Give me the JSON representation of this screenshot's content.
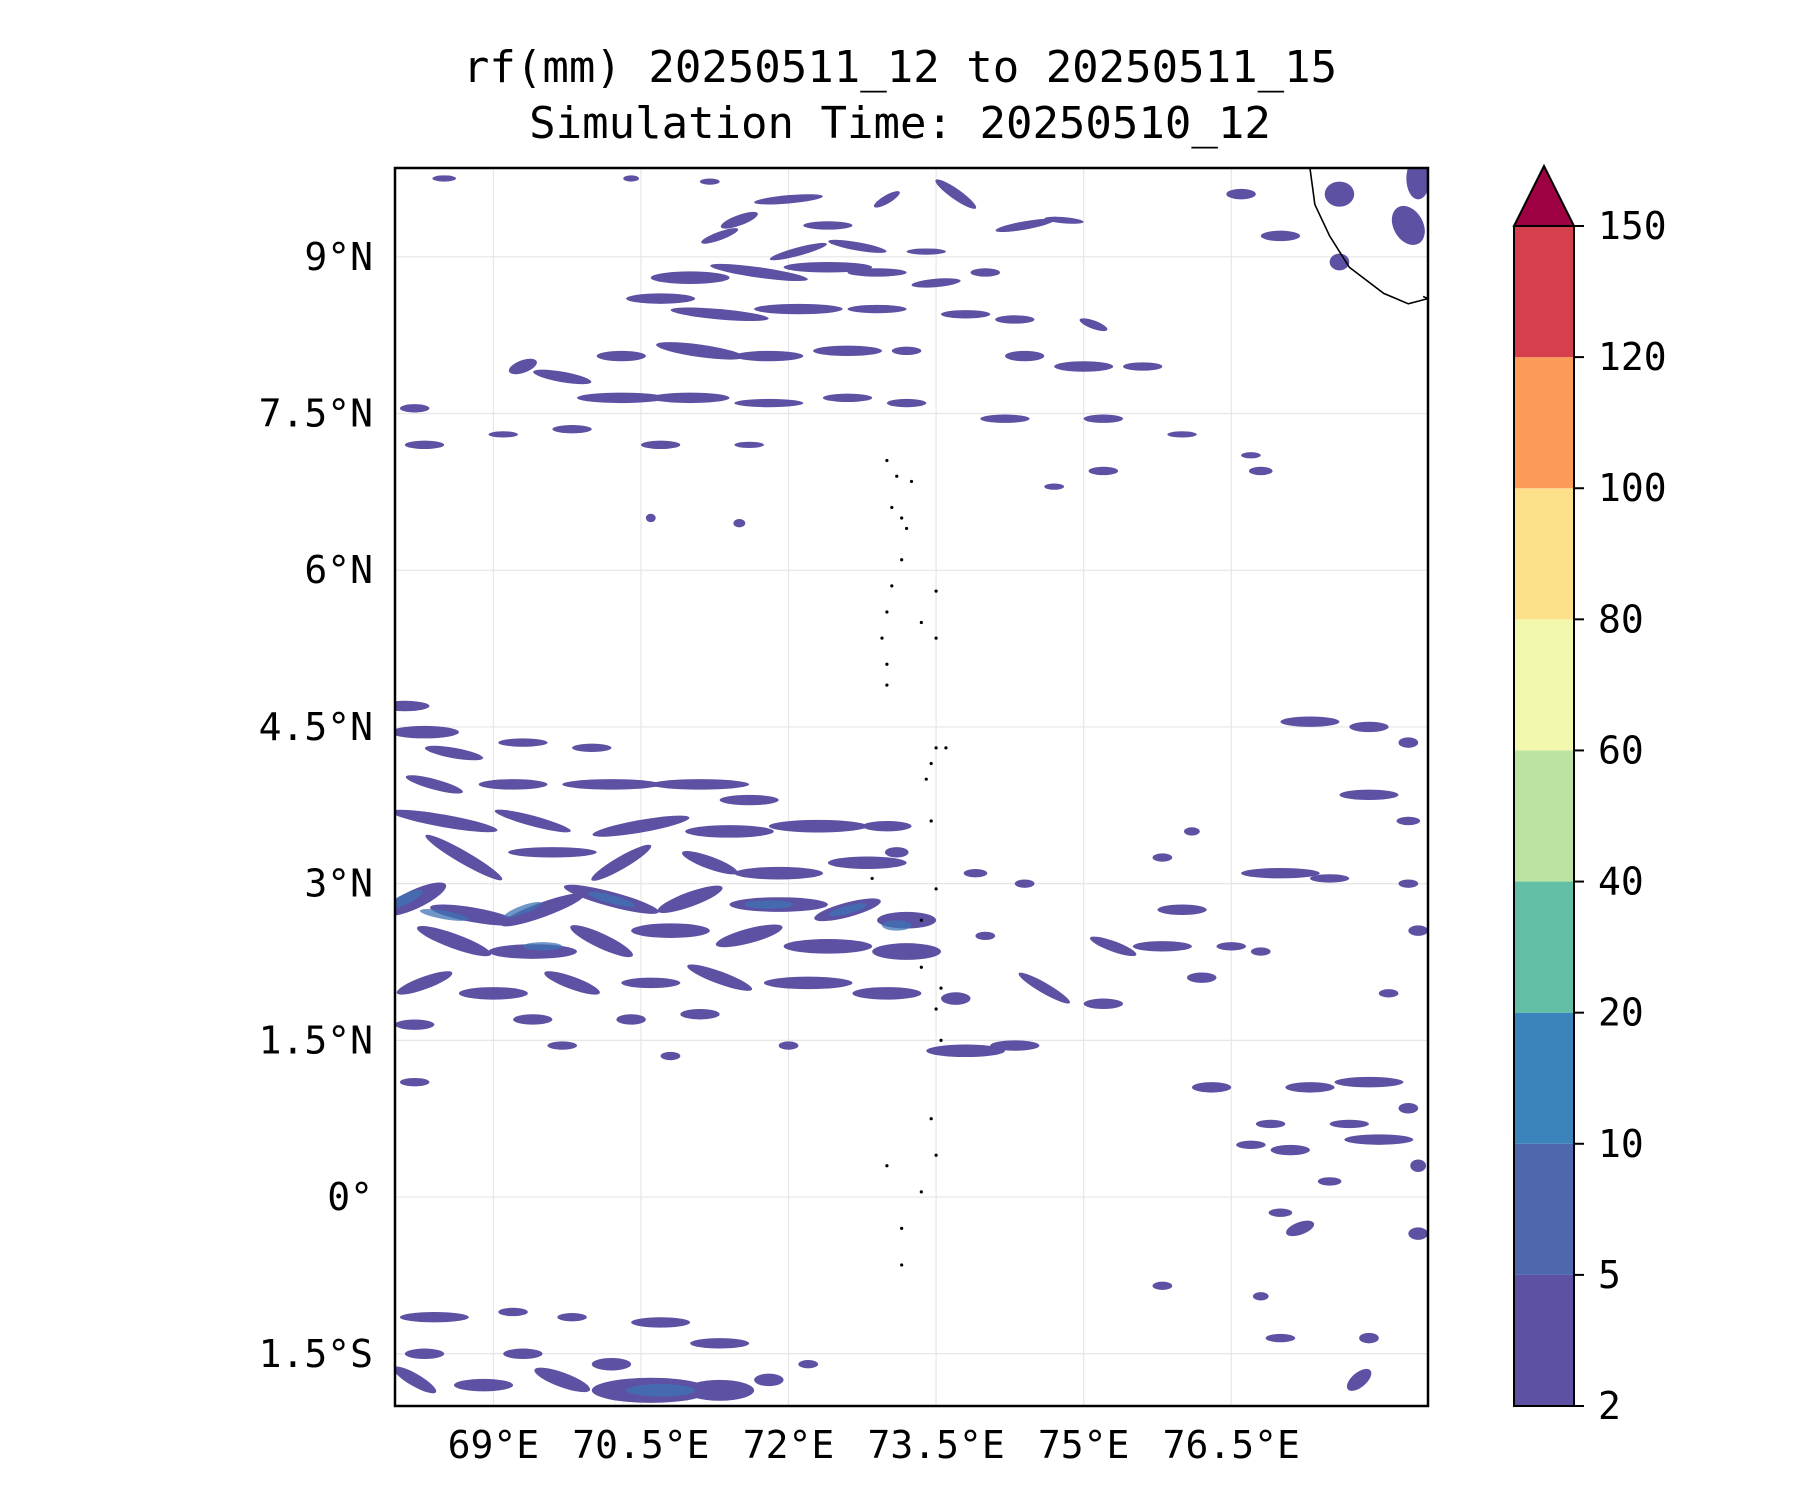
{
  "map": {
    "title_line1": "rf(mm) 20250511_12 to 20250511_15",
    "title_line2": "Simulation Time: 20250510_12",
    "lon_range": [
      68.0,
      78.5
    ],
    "lat_range": [
      -2.0,
      9.85
    ],
    "lon_ticks": [
      69,
      70.5,
      72,
      73.5,
      75,
      76.5
    ],
    "lon_tick_labels": [
      "69°E",
      "70.5°E",
      "72°E",
      "73.5°E",
      "75°E",
      "76.5°E"
    ],
    "lat_ticks": [
      9,
      7.5,
      6,
      4.5,
      3,
      1.5,
      0,
      -1.5
    ],
    "lat_tick_labels": [
      "9°N",
      "7.5°N",
      "6°N",
      "4.5°N",
      "3°N",
      "1.5°N",
      "0°",
      "1.5°S"
    ],
    "gridlines": true,
    "coastline": "black"
  },
  "colorbar": {
    "levels": [
      2,
      5,
      10,
      20,
      40,
      60,
      80,
      100,
      120,
      150
    ],
    "labels": [
      "2",
      "5",
      "10",
      "20",
      "40",
      "60",
      "80",
      "100",
      "120",
      "150"
    ],
    "colors": [
      "#5c51a3",
      "#4e67ad",
      "#3b84bb",
      "#63bea6",
      "#bde3a2",
      "#f2f9ae",
      "#fce08a",
      "#fa9b58",
      "#d6404e"
    ],
    "extend_color": "#9e0142",
    "extend": "max"
  },
  "rain": {
    "fill_color": "#5c51a3",
    "heavy_color": "#3f73b3",
    "blobs": [
      [
        68.5,
        9.75,
        0.12,
        0.03,
        0
      ],
      [
        70.4,
        9.75,
        0.08,
        0.03,
        0
      ],
      [
        71.2,
        9.72,
        0.1,
        0.03,
        0
      ],
      [
        72.0,
        9.55,
        0.35,
        0.04,
        5
      ],
      [
        73.0,
        9.55,
        0.15,
        0.04,
        30
      ],
      [
        73.7,
        9.6,
        0.25,
        0.05,
        -35
      ],
      [
        74.4,
        9.3,
        0.3,
        0.04,
        10
      ],
      [
        74.8,
        9.35,
        0.2,
        0.03,
        -5
      ],
      [
        71.3,
        9.2,
        0.2,
        0.04,
        20
      ],
      [
        71.0,
        8.8,
        0.4,
        0.06,
        0
      ],
      [
        71.7,
        8.85,
        0.5,
        0.05,
        -8
      ],
      [
        72.4,
        8.9,
        0.45,
        0.05,
        0
      ],
      [
        72.1,
        9.05,
        0.3,
        0.04,
        15
      ],
      [
        72.9,
        8.85,
        0.3,
        0.04,
        0
      ],
      [
        73.5,
        8.75,
        0.25,
        0.04,
        5
      ],
      [
        74.0,
        8.85,
        0.15,
        0.04,
        0
      ],
      [
        72.7,
        9.1,
        0.3,
        0.04,
        -10
      ],
      [
        71.5,
        9.35,
        0.2,
        0.05,
        20
      ],
      [
        72.4,
        9.3,
        0.25,
        0.04,
        0
      ],
      [
        73.4,
        9.05,
        0.2,
        0.03,
        0
      ],
      [
        70.7,
        8.6,
        0.35,
        0.05,
        0
      ],
      [
        71.3,
        8.45,
        0.5,
        0.05,
        -5
      ],
      [
        72.1,
        8.5,
        0.45,
        0.05,
        0
      ],
      [
        72.9,
        8.5,
        0.3,
        0.04,
        0
      ],
      [
        73.8,
        8.45,
        0.25,
        0.04,
        0
      ],
      [
        74.3,
        8.4,
        0.2,
        0.04,
        0
      ],
      [
        70.3,
        8.05,
        0.25,
        0.05,
        0
      ],
      [
        71.1,
        8.1,
        0.45,
        0.06,
        -8
      ],
      [
        71.8,
        8.05,
        0.35,
        0.05,
        0
      ],
      [
        72.6,
        8.1,
        0.35,
        0.05,
        0
      ],
      [
        73.2,
        8.1,
        0.15,
        0.04,
        0
      ],
      [
        74.4,
        8.05,
        0.2,
        0.05,
        0
      ],
      [
        75.0,
        7.95,
        0.3,
        0.05,
        0
      ],
      [
        75.6,
        7.95,
        0.2,
        0.04,
        0
      ],
      [
        75.1,
        8.35,
        0.15,
        0.04,
        -20
      ],
      [
        69.3,
        7.95,
        0.15,
        0.06,
        20
      ],
      [
        69.7,
        7.85,
        0.3,
        0.05,
        -10
      ],
      [
        70.3,
        7.65,
        0.45,
        0.05,
        0
      ],
      [
        71.0,
        7.65,
        0.4,
        0.05,
        0
      ],
      [
        71.8,
        7.6,
        0.35,
        0.04,
        0
      ],
      [
        72.6,
        7.65,
        0.25,
        0.04,
        0
      ],
      [
        73.2,
        7.6,
        0.2,
        0.04,
        0
      ],
      [
        68.2,
        7.55,
        0.15,
        0.04,
        0
      ],
      [
        68.3,
        7.2,
        0.2,
        0.04,
        0
      ],
      [
        69.1,
        7.3,
        0.15,
        0.03,
        0
      ],
      [
        69.8,
        7.35,
        0.2,
        0.04,
        0
      ],
      [
        70.7,
        7.2,
        0.2,
        0.04,
        0
      ],
      [
        71.6,
        7.2,
        0.15,
        0.03,
        0
      ],
      [
        74.2,
        7.45,
        0.25,
        0.04,
        0
      ],
      [
        75.2,
        7.45,
        0.2,
        0.04,
        0
      ],
      [
        76.0,
        7.3,
        0.15,
        0.03,
        0
      ],
      [
        76.8,
        6.95,
        0.12,
        0.04,
        0
      ],
      [
        75.2,
        6.95,
        0.15,
        0.04,
        0
      ],
      [
        76.7,
        7.1,
        0.1,
        0.03,
        0
      ],
      [
        74.7,
        6.8,
        0.1,
        0.03,
        0
      ],
      [
        70.6,
        6.5,
        0.05,
        0.04,
        0
      ],
      [
        71.5,
        6.45,
        0.06,
        0.04,
        0
      ],
      [
        78.3,
        9.3,
        0.15,
        0.2,
        30
      ],
      [
        78.4,
        9.75,
        0.12,
        0.2,
        0
      ],
      [
        77.6,
        9.6,
        0.15,
        0.12,
        0
      ],
      [
        77.0,
        9.2,
        0.2,
        0.05,
        0
      ],
      [
        76.6,
        9.6,
        0.15,
        0.05,
        0
      ],
      [
        77.6,
        8.95,
        0.1,
        0.08,
        0
      ],
      [
        68.1,
        4.7,
        0.25,
        0.05,
        0
      ],
      [
        68.3,
        4.45,
        0.35,
        0.06,
        0
      ],
      [
        68.6,
        4.25,
        0.3,
        0.05,
        -10
      ],
      [
        69.3,
        4.35,
        0.25,
        0.04,
        0
      ],
      [
        70.0,
        4.3,
        0.2,
        0.04,
        0
      ],
      [
        68.4,
        3.95,
        0.3,
        0.05,
        -15
      ],
      [
        69.2,
        3.95,
        0.35,
        0.05,
        0
      ],
      [
        70.2,
        3.95,
        0.5,
        0.05,
        0
      ],
      [
        71.1,
        3.95,
        0.5,
        0.05,
        0
      ],
      [
        71.6,
        3.8,
        0.3,
        0.05,
        0
      ],
      [
        68.5,
        3.6,
        0.55,
        0.06,
        -10
      ],
      [
        69.4,
        3.6,
        0.4,
        0.05,
        -15
      ],
      [
        70.5,
        3.55,
        0.5,
        0.06,
        10
      ],
      [
        71.4,
        3.5,
        0.45,
        0.06,
        0
      ],
      [
        72.3,
        3.55,
        0.5,
        0.06,
        0
      ],
      [
        73.0,
        3.55,
        0.25,
        0.05,
        0
      ],
      [
        68.7,
        3.25,
        0.45,
        0.06,
        -30
      ],
      [
        69.6,
        3.3,
        0.45,
        0.05,
        0
      ],
      [
        70.3,
        3.2,
        0.35,
        0.06,
        30
      ],
      [
        71.2,
        3.2,
        0.3,
        0.06,
        -20
      ],
      [
        71.9,
        3.1,
        0.45,
        0.06,
        0
      ],
      [
        72.8,
        3.2,
        0.4,
        0.06,
        0
      ],
      [
        68.2,
        2.85,
        0.35,
        0.09,
        25
      ],
      [
        68.8,
        2.7,
        0.45,
        0.07,
        -10
      ],
      [
        69.5,
        2.75,
        0.45,
        0.07,
        20
      ],
      [
        70.2,
        2.85,
        0.5,
        0.07,
        -15
      ],
      [
        71.0,
        2.85,
        0.35,
        0.07,
        20
      ],
      [
        71.9,
        2.8,
        0.5,
        0.07,
        0
      ],
      [
        72.6,
        2.75,
        0.35,
        0.07,
        15
      ],
      [
        73.2,
        2.65,
        0.3,
        0.08,
        0
      ],
      [
        68.6,
        2.45,
        0.4,
        0.07,
        -20
      ],
      [
        69.4,
        2.35,
        0.45,
        0.07,
        0
      ],
      [
        70.1,
        2.45,
        0.35,
        0.07,
        -25
      ],
      [
        70.8,
        2.55,
        0.4,
        0.07,
        0
      ],
      [
        71.6,
        2.5,
        0.35,
        0.07,
        15
      ],
      [
        72.4,
        2.4,
        0.45,
        0.07,
        0
      ],
      [
        73.2,
        2.35,
        0.35,
        0.08,
        0
      ],
      [
        68.3,
        2.05,
        0.3,
        0.06,
        20
      ],
      [
        69.0,
        1.95,
        0.35,
        0.06,
        0
      ],
      [
        69.8,
        2.05,
        0.3,
        0.06,
        -20
      ],
      [
        70.6,
        2.05,
        0.3,
        0.05,
        0
      ],
      [
        71.3,
        2.1,
        0.35,
        0.06,
        -20
      ],
      [
        72.2,
        2.05,
        0.45,
        0.06,
        0
      ],
      [
        73.0,
        1.95,
        0.35,
        0.06,
        0
      ],
      [
        68.2,
        1.65,
        0.2,
        0.05,
        0
      ],
      [
        69.4,
        1.7,
        0.2,
        0.05,
        0
      ],
      [
        70.4,
        1.7,
        0.15,
        0.05,
        0
      ],
      [
        71.1,
        1.75,
        0.2,
        0.05,
        0
      ],
      [
        73.8,
        1.4,
        0.4,
        0.06,
        0
      ],
      [
        74.3,
        1.45,
        0.25,
        0.05,
        0
      ],
      [
        69.7,
        1.45,
        0.15,
        0.04,
        0
      ],
      [
        70.8,
        1.35,
        0.1,
        0.04,
        0
      ],
      [
        72.0,
        1.45,
        0.1,
        0.04,
        0
      ],
      [
        68.2,
        1.1,
        0.15,
        0.04,
        0
      ],
      [
        73.9,
        3.1,
        0.12,
        0.04,
        0
      ],
      [
        74.4,
        3.0,
        0.1,
        0.04,
        0
      ],
      [
        74.0,
        2.5,
        0.1,
        0.04,
        0
      ],
      [
        74.6,
        2.0,
        0.3,
        0.05,
        -30
      ],
      [
        75.2,
        1.85,
        0.2,
        0.05,
        0
      ],
      [
        75.3,
        2.4,
        0.25,
        0.05,
        -20
      ],
      [
        75.8,
        2.4,
        0.3,
        0.05,
        0
      ],
      [
        76.0,
        2.75,
        0.25,
        0.05,
        0
      ],
      [
        76.5,
        2.4,
        0.15,
        0.04,
        0
      ],
      [
        76.2,
        2.1,
        0.15,
        0.05,
        0
      ],
      [
        75.8,
        3.25,
        0.1,
        0.04,
        0
      ],
      [
        76.1,
        3.5,
        0.08,
        0.04,
        0
      ],
      [
        77.0,
        3.1,
        0.4,
        0.05,
        0
      ],
      [
        77.5,
        3.05,
        0.2,
        0.04,
        0
      ],
      [
        78.3,
        3.0,
        0.1,
        0.04,
        0
      ],
      [
        78.4,
        2.55,
        0.1,
        0.05,
        0
      ],
      [
        76.8,
        2.35,
        0.1,
        0.04,
        0
      ],
      [
        77.3,
        4.55,
        0.3,
        0.05,
        0
      ],
      [
        77.9,
        4.5,
        0.2,
        0.05,
        0
      ],
      [
        78.3,
        4.35,
        0.1,
        0.05,
        0
      ],
      [
        77.9,
        3.85,
        0.3,
        0.05,
        0
      ],
      [
        78.3,
        3.6,
        0.12,
        0.04,
        0
      ],
      [
        78.1,
        1.95,
        0.1,
        0.04,
        0
      ],
      [
        77.3,
        1.05,
        0.25,
        0.05,
        0
      ],
      [
        77.9,
        1.1,
        0.35,
        0.05,
        0
      ],
      [
        76.3,
        1.05,
        0.2,
        0.05,
        0
      ],
      [
        76.9,
        0.7,
        0.15,
        0.04,
        0
      ],
      [
        77.7,
        0.7,
        0.2,
        0.04,
        0
      ],
      [
        78.0,
        0.55,
        0.35,
        0.05,
        0
      ],
      [
        77.1,
        0.45,
        0.2,
        0.05,
        0
      ],
      [
        76.7,
        0.5,
        0.15,
        0.04,
        0
      ],
      [
        78.3,
        0.85,
        0.1,
        0.05,
        0
      ],
      [
        78.4,
        0.3,
        0.08,
        0.06,
        0
      ],
      [
        77.5,
        0.15,
        0.12,
        0.04,
        0
      ],
      [
        77.0,
        -0.15,
        0.12,
        0.04,
        0
      ],
      [
        77.2,
        -0.3,
        0.15,
        0.06,
        20
      ],
      [
        78.4,
        -0.35,
        0.1,
        0.06,
        0
      ],
      [
        76.8,
        -0.95,
        0.08,
        0.04,
        0
      ],
      [
        77.0,
        -1.35,
        0.15,
        0.04,
        0
      ],
      [
        77.9,
        -1.35,
        0.1,
        0.05,
        0
      ],
      [
        77.8,
        -1.75,
        0.15,
        0.07,
        40
      ],
      [
        75.8,
        -0.85,
        0.1,
        0.04,
        0
      ],
      [
        68.4,
        -1.15,
        0.35,
        0.05,
        0
      ],
      [
        69.2,
        -1.1,
        0.15,
        0.04,
        0
      ],
      [
        69.8,
        -1.15,
        0.15,
        0.04,
        0
      ],
      [
        70.7,
        -1.2,
        0.3,
        0.05,
        0
      ],
      [
        71.3,
        -1.4,
        0.3,
        0.05,
        0
      ],
      [
        68.3,
        -1.5,
        0.2,
        0.05,
        0
      ],
      [
        69.3,
        -1.5,
        0.2,
        0.05,
        0
      ],
      [
        68.2,
        -1.75,
        0.25,
        0.06,
        -30
      ],
      [
        68.9,
        -1.8,
        0.3,
        0.06,
        0
      ],
      [
        69.7,
        -1.75,
        0.3,
        0.07,
        -20
      ],
      [
        70.2,
        -1.6,
        0.2,
        0.06,
        0
      ],
      [
        70.6,
        -1.85,
        0.6,
        0.12,
        0
      ],
      [
        71.3,
        -1.85,
        0.35,
        0.1,
        0
      ],
      [
        71.8,
        -1.75,
        0.15,
        0.06,
        0
      ],
      [
        72.2,
        -1.6,
        0.1,
        0.04,
        0
      ],
      [
        73.7,
        1.9,
        0.15,
        0.06,
        0
      ],
      [
        73.1,
        3.3,
        0.12,
        0.05,
        0
      ]
    ],
    "heavy_blobs": [
      [
        68.1,
        2.85,
        0.2,
        0.05,
        25
      ],
      [
        68.5,
        2.7,
        0.25,
        0.04,
        -10
      ],
      [
        69.3,
        2.75,
        0.2,
        0.04,
        20
      ],
      [
        70.2,
        2.85,
        0.25,
        0.04,
        -15
      ],
      [
        71.8,
        2.8,
        0.25,
        0.04,
        0
      ],
      [
        72.6,
        2.75,
        0.2,
        0.04,
        15
      ],
      [
        73.1,
        2.6,
        0.15,
        0.05,
        0
      ],
      [
        70.7,
        -1.85,
        0.35,
        0.06,
        0
      ],
      [
        69.5,
        2.4,
        0.2,
        0.04,
        0
      ]
    ]
  },
  "coastline": {
    "india": [
      [
        77.3,
        9.85
      ],
      [
        77.35,
        9.5
      ],
      [
        77.5,
        9.2
      ],
      [
        77.7,
        8.9
      ],
      [
        78.05,
        8.65
      ],
      [
        78.3,
        8.55
      ],
      [
        78.5,
        8.6
      ],
      [
        78.45,
        8.62
      ]
    ],
    "maldives_atolls": [
      [
        73.0,
        7.05
      ],
      [
        73.1,
        6.9
      ],
      [
        73.25,
        6.85
      ],
      [
        73.05,
        6.6
      ],
      [
        73.15,
        6.5
      ],
      [
        73.2,
        6.4
      ],
      [
        73.15,
        6.1
      ],
      [
        73.05,
        5.85
      ],
      [
        73.0,
        5.6
      ],
      [
        72.95,
        5.35
      ],
      [
        73.5,
        5.8
      ],
      [
        73.35,
        5.5
      ],
      [
        73.5,
        5.35
      ],
      [
        73.0,
        5.1
      ],
      [
        73.0,
        4.9
      ],
      [
        73.5,
        4.3
      ],
      [
        73.45,
        4.15
      ],
      [
        73.6,
        4.3
      ],
      [
        73.4,
        4.0
      ],
      [
        73.45,
        3.6
      ],
      [
        72.85,
        3.05
      ],
      [
        73.5,
        2.95
      ],
      [
        73.35,
        2.65
      ],
      [
        73.35,
        2.2
      ],
      [
        73.55,
        2.0
      ],
      [
        73.5,
        1.8
      ],
      [
        73.55,
        1.5
      ],
      [
        73.45,
        0.75
      ],
      [
        73.5,
        0.4
      ],
      [
        73.35,
        0.05
      ],
      [
        73.0,
        0.3
      ],
      [
        73.15,
        -0.3
      ],
      [
        73.15,
        -0.65
      ]
    ]
  }
}
